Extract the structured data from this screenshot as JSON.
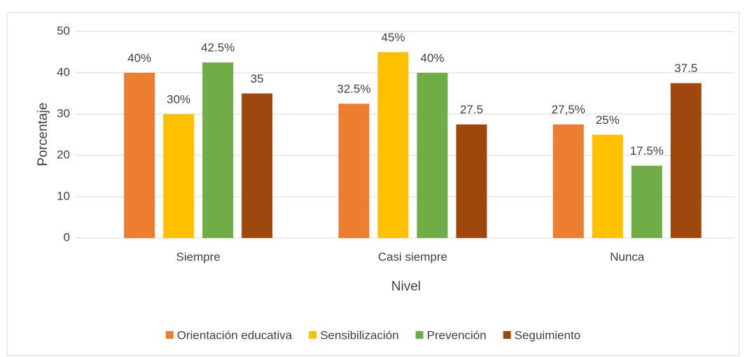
{
  "chart_data": {
    "type": "bar",
    "x_label": "Nivel",
    "y_label": "Porcentaje",
    "categories": [
      "Siempre",
      "Casi siempre",
      "Nunca"
    ],
    "series": [
      {
        "name": "Orientación educativa",
        "color": "#ed7d31",
        "values": [
          40,
          32.5,
          27.5
        ],
        "value_labels": [
          "40%",
          "32.5%",
          "27,5%"
        ]
      },
      {
        "name": "Sensibilización",
        "color": "#ffc000",
        "values": [
          30,
          45,
          25
        ],
        "value_labels": [
          "30%",
          "45%",
          "25%"
        ]
      },
      {
        "name": "Prevención",
        "color": "#70ad47",
        "values": [
          42.5,
          40,
          17.5
        ],
        "value_labels": [
          "42.5%",
          "40%",
          "17.5%"
        ]
      },
      {
        "name": "Seguimiento",
        "color": "#9e480e",
        "values": [
          35,
          27.5,
          37.5
        ]
      }
    ],
    "ylim": [
      0,
      50
    ],
    "yticks": [
      0,
      10,
      20,
      30,
      40,
      50
    ],
    "grid": true,
    "legend": "bottom"
  }
}
